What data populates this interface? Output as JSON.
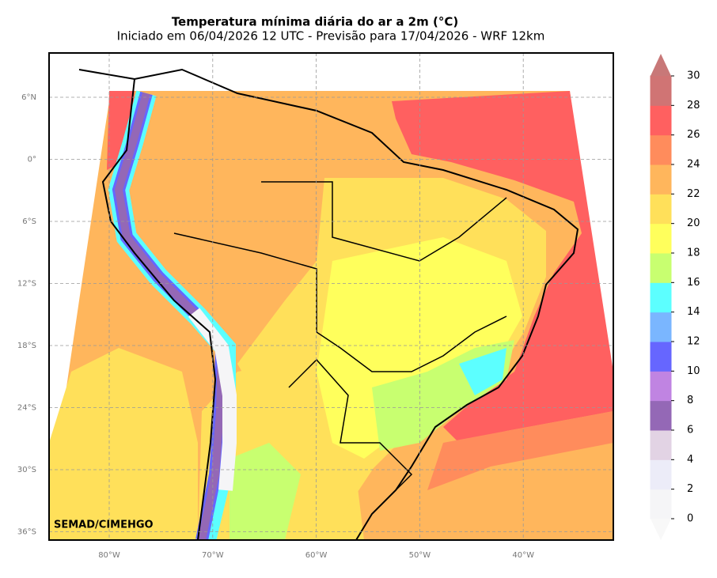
{
  "title": "Temperatura mínima diária do ar a 2m (°C)",
  "subtitle": "Iniciado em 06/04/2026 12 UTC - Previsão para 17/04/2026 - WRF 12km",
  "credit": "SEMAD/CIMEHGO",
  "lat_labels": [
    "6°N",
    "0°",
    "6°S",
    "12°S",
    "18°S",
    "24°S",
    "30°S",
    "36°S"
  ],
  "lon_labels": [
    "80°W",
    "70°W",
    "60°W",
    "50°W",
    "40°W"
  ],
  "colorbar": {
    "ticks": [
      0,
      2,
      4,
      6,
      8,
      10,
      12,
      14,
      16,
      18,
      20,
      22,
      24,
      26,
      28,
      30
    ],
    "colors": [
      "#f5f5f7",
      "#ececf8",
      "#e2d3e4",
      "#9468b6",
      "#c084e2",
      "#6666ff",
      "#7ab6ff",
      "#5cffff",
      "#c8ff70",
      "#ffff5c",
      "#ffe05a",
      "#ffb65c",
      "#ff8c5c",
      "#ff6060",
      "#d07474"
    ],
    "under_color": "#f8f8f8",
    "over_color": "#c87878"
  }
}
